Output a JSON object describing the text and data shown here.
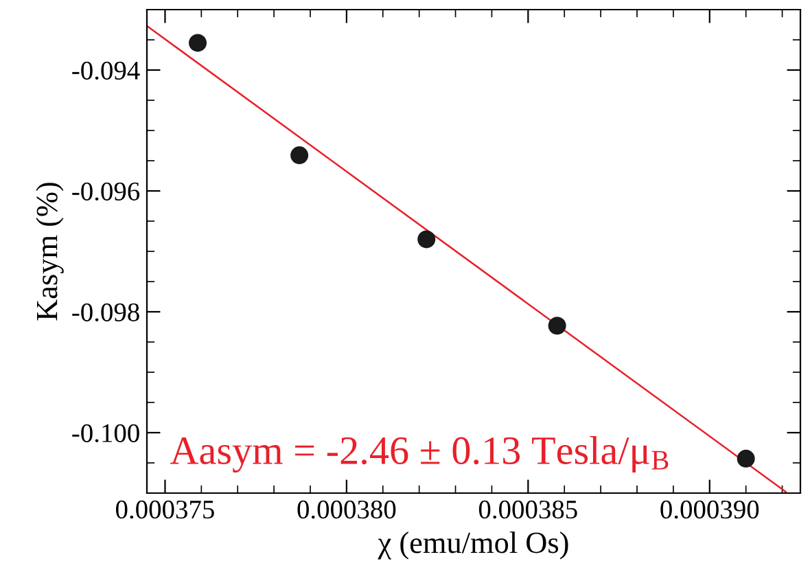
{
  "chart_data": {
    "type": "scatter",
    "xlabel": "χ (emu/mol Os)",
    "ylabel": "Kasym (%)",
    "series": [
      {
        "color": "#1a1a1a",
        "x": [
          0.0003759,
          0.0003787,
          0.0003822,
          0.0003858,
          0.000391
        ],
        "values": [
          -0.09355,
          -0.09541,
          -0.0968,
          -0.09823,
          -0.10043
        ]
      },
      {
        "type": "line",
        "marker": "none",
        "color": "#e8202a",
        "x": [
          0.0003745,
          0.0003921
        ],
        "values": [
          -0.09327,
          -0.10098
        ]
      }
    ],
    "xlim": [
      0.0003745,
      0.0003925
    ],
    "ylim": [
      -0.101,
      -0.093
    ],
    "xticks": [
      0.000375,
      {
        "value": 0.00038,
        "label": "0.000380"
      },
      0.000385,
      {
        "value": 0.00039,
        "label": "0.000390"
      }
    ],
    "yticks": [
      {
        "value": -0.1,
        "label": "-0.100"
      },
      {
        "value": -0.098,
        "label": "-0.098"
      },
      {
        "value": -0.096,
        "label": "-0.096"
      },
      {
        "value": -0.094,
        "label": "-0.094"
      }
    ],
    "marker": "circle",
    "grid": false,
    "legend": false,
    "annotations": [
      "Aasym = -2.46 ± 0.13 Tesla/μ$_{B}$"
    ]
  }
}
